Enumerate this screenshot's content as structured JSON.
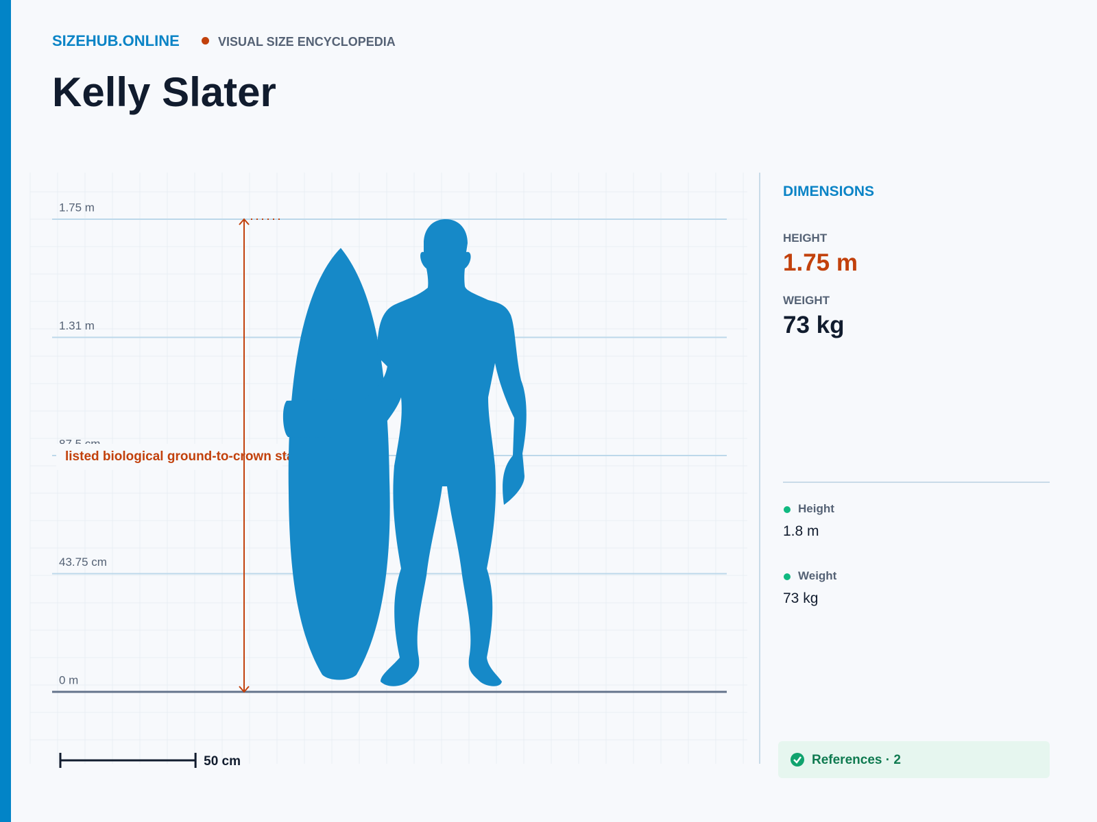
{
  "header": {
    "brand": "SIZEHUB.ONLINE",
    "tagline": "VISUAL SIZE ENCYCLOPEDIA",
    "title": "Kelly Slater"
  },
  "scale": {
    "ylim": [
      0,
      175
    ],
    "ticks": [
      {
        "value": 175,
        "label": "1.75 m"
      },
      {
        "value": 131.25,
        "label": "1.31 m"
      },
      {
        "value": 87.5,
        "label": "87.5 cm"
      },
      {
        "value": 43.75,
        "label": "43.75 cm"
      },
      {
        "value": 0,
        "label": "0 m"
      }
    ],
    "figure_height": 175,
    "annotation": "listed biological ground-to-crown stature",
    "scale_bar": {
      "value": 50,
      "label": "50 cm"
    }
  },
  "sidebar": {
    "heading": "DIMENSIONS",
    "stats": [
      {
        "label": "HEIGHT",
        "value": "1.75 m"
      },
      {
        "label": "WEIGHT",
        "value": "73 kg"
      }
    ],
    "sources": [
      {
        "label": "Height",
        "value": "1.8 m"
      },
      {
        "label": "Weight",
        "value": "73 kg"
      }
    ],
    "references": "References · 2"
  }
}
